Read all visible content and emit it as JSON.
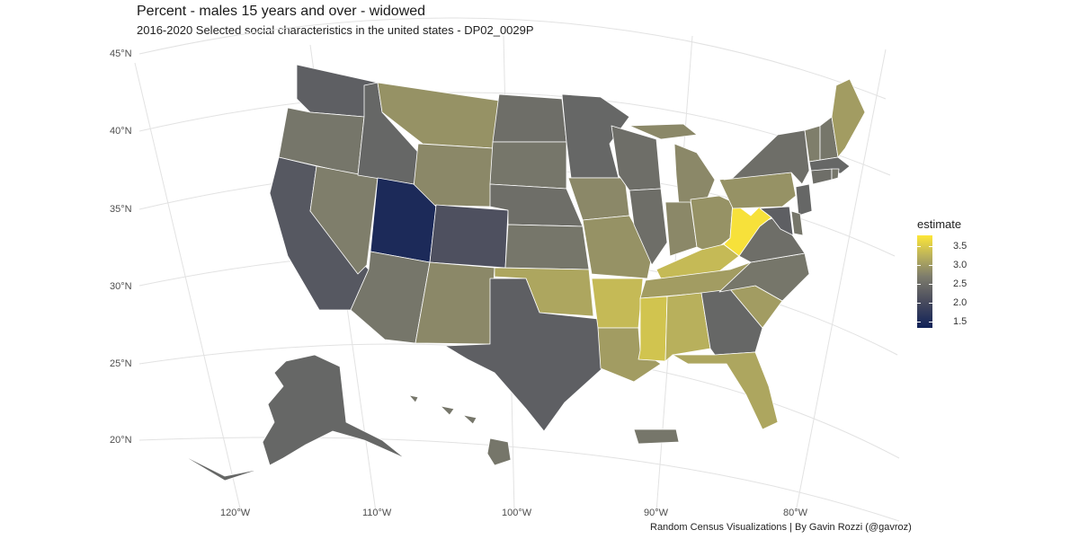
{
  "title": "Percent - males 15 years and over - widowed",
  "subtitle": "2016-2020 Selected social characteristics in the united states - DP02_0029P",
  "caption": "Random Census Visualizations | By Gavin Rozzi (@gavroz)",
  "lat_labels": [
    "45°N",
    "40°N",
    "35°N",
    "30°N",
    "25°N",
    "20°N"
  ],
  "lon_labels": [
    "120°W",
    "110°W",
    "100°W",
    "90°W",
    "80°W"
  ],
  "legend": {
    "title": "estimate",
    "ticks": [
      "3.5",
      "3.0",
      "2.5",
      "2.0",
      "1.5"
    ],
    "range": [
      1.35,
      3.75
    ]
  },
  "colors": {
    "low": "#0f2158",
    "mid": "#7c7b6c",
    "high": "#fde637",
    "background": "#ffffff",
    "graticule": "#e2e2e2"
  },
  "estimates": {
    "Washington": 2.3,
    "Oregon": 2.6,
    "California": 2.2,
    "Nevada": 2.7,
    "Idaho": 2.4,
    "Montana": 2.9,
    "Wyoming": 2.8,
    "Utah": 1.5,
    "Colorado": 2.1,
    "Arizona": 2.6,
    "New Mexico": 2.8,
    "North Dakota": 2.5,
    "South Dakota": 2.6,
    "Nebraska": 2.5,
    "Kansas": 2.6,
    "Oklahoma": 3.1,
    "Texas": 2.3,
    "Minnesota": 2.4,
    "Iowa": 2.8,
    "Missouri": 2.9,
    "Arkansas": 3.3,
    "Louisiana": 3.0,
    "Wisconsin": 2.5,
    "Illinois": 2.5,
    "Michigan": 2.8,
    "Indiana": 2.8,
    "Ohio": 2.9,
    "Kentucky": 3.3,
    "Tennessee": 3.0,
    "Mississippi": 3.4,
    "Alabama": 3.2,
    "Georgia": 2.4,
    "Florida": 3.1,
    "South Carolina": 3.0,
    "North Carolina": 2.6,
    "Virginia": 2.5,
    "West Virginia": 3.7,
    "Pennsylvania": 2.9,
    "New York": 2.5,
    "New Jersey": 2.4,
    "Delaware": 2.6,
    "Maryland": 2.3,
    "Maine": 3.0,
    "Vermont": 2.7,
    "New Hampshire": 2.6,
    "Massachusetts": 2.4,
    "Connecticut": 2.5,
    "Rhode Island": 2.6,
    "Alaska": 2.4,
    "Hawaii": 2.6,
    "Puerto Rico": 2.6
  }
}
